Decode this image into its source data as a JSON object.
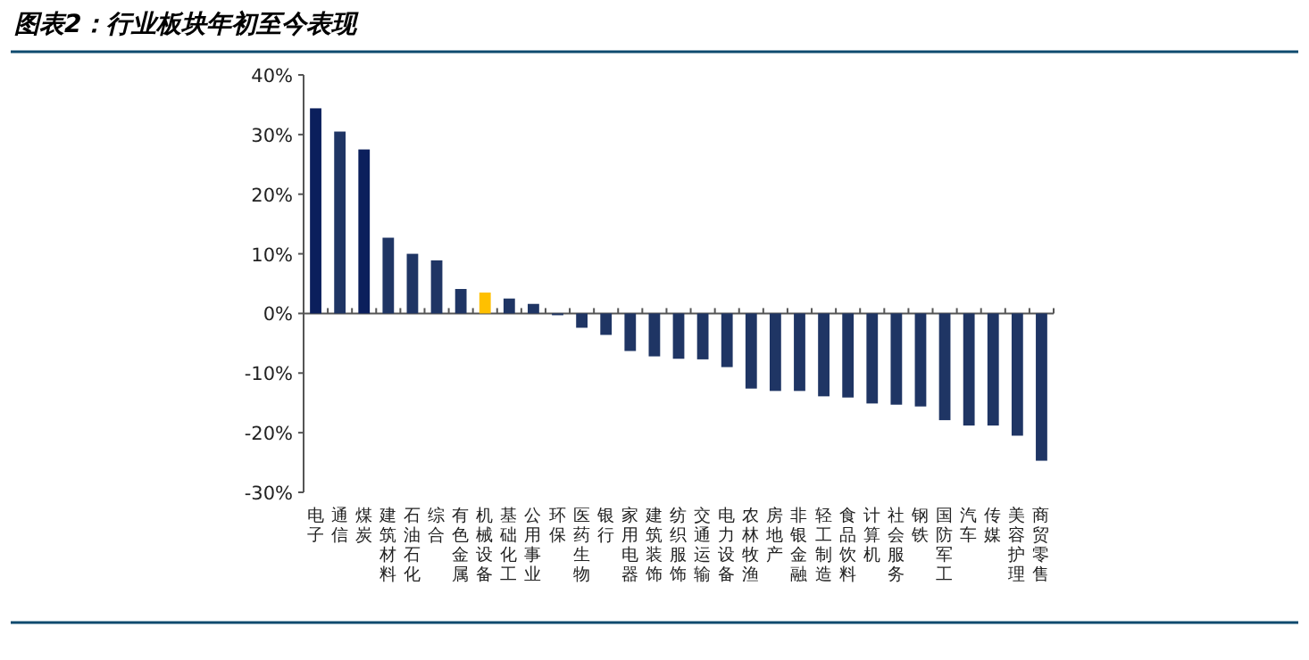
{
  "chart_data": {
    "type": "bar",
    "title": "图表2：行业板块年初至今表现",
    "categories": [
      "电子",
      "通信",
      "煤炭",
      "建筑材料",
      "石油石化",
      "综合",
      "有色金属",
      "机械设备",
      "基础化工",
      "公用事业",
      "环保",
      "医药生物",
      "银行",
      "家用电器",
      "建筑装饰",
      "纺织服饰",
      "交通运输",
      "电力设备",
      "农林牧渔",
      "房地产",
      "非银金融",
      "轻工制造",
      "食品饮料",
      "计算机",
      "社会服务",
      "钢铁",
      "国防军工",
      "汽车",
      "传媒",
      "美容护理",
      "商贸零售"
    ],
    "values": [
      34.4,
      30.5,
      27.5,
      12.7,
      10.0,
      8.9,
      4.1,
      3.5,
      2.5,
      1.6,
      -0.3,
      -2.4,
      -3.6,
      -6.3,
      -7.2,
      -7.6,
      -7.7,
      -9.0,
      -12.6,
      -13.0,
      -13.0,
      -13.9,
      -14.1,
      -15.1,
      -15.3,
      -15.6,
      -17.9,
      -18.8,
      -18.8,
      -20.5,
      -24.7
    ],
    "colors": [
      "#0b1f5c",
      "#1f3564",
      "#0b1f5c",
      "#1f3564",
      "#1f3564",
      "#1f3564",
      "#1f3564",
      "#ffc000",
      "#1f3564",
      "#1f3564",
      "#1f3564",
      "#1f3564",
      "#1f3564",
      "#1f3564",
      "#1f3564",
      "#1f3564",
      "#1f3564",
      "#1f3564",
      "#1f3564",
      "#1f3564",
      "#1f3564",
      "#1f3564",
      "#1f3564",
      "#1f3564",
      "#1f3564",
      "#1f3564",
      "#1f3564",
      "#1f3564",
      "#1f3564",
      "#1f3564",
      "#1f3564"
    ],
    "ylim": [
      -30,
      40
    ],
    "yticks": [
      {
        "value": -30,
        "label": "-30%"
      },
      {
        "value": -20,
        "label": "-20%"
      },
      {
        "value": -10,
        "label": "-10%"
      },
      {
        "value": 0,
        "label": "0%"
      },
      {
        "value": 10,
        "label": "10%"
      },
      {
        "value": 20,
        "label": "20%"
      },
      {
        "value": 30,
        "label": "30%"
      },
      {
        "value": 40,
        "label": "40%"
      }
    ]
  }
}
